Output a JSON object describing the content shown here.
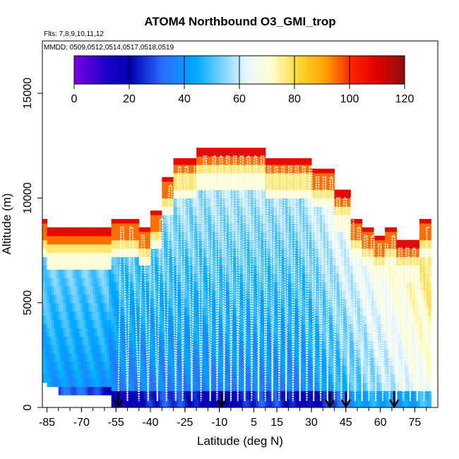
{
  "chart_data": {
    "type": "heatmap",
    "title": "ATOM4 Northbound O3_GMI_trop",
    "flights_label": "Flts: 7,8,9,10,11,12",
    "dates_label": "MMDD: 0509,0512,0514,0517,0518,0519",
    "xlabel": "Latitude (deg N)",
    "ylabel": "Altitude (m)",
    "xlim": [
      -87,
      85
    ],
    "ylim": [
      0,
      17500
    ],
    "x_ticks": [
      -85,
      -70,
      -55,
      -40,
      -25,
      -10,
      5,
      15,
      30,
      45,
      60,
      75
    ],
    "y_ticks": [
      0,
      5000,
      10000,
      15000
    ],
    "colorbar": {
      "range": [
        0,
        120
      ],
      "ticks": [
        0,
        20,
        40,
        60,
        80,
        100,
        120
      ],
      "colors": [
        "#7a00e6",
        "#0000b3",
        "#2b7fff",
        "#00aaff",
        "#bfe8ff",
        "#ffffcc",
        "#ffd633",
        "#ff9900",
        "#ff0000",
        "#b30000"
      ]
    },
    "curtain_columns": [
      {
        "lat0": -87,
        "lat1": -85,
        "top": 9000,
        "bottom": 1200
      },
      {
        "lat0": -85,
        "lat1": -80,
        "top": 8600,
        "bottom": 1000
      },
      {
        "lat0": -80,
        "lat1": -57,
        "top": 8600,
        "bottom": 600
      },
      {
        "lat0": -57,
        "lat1": -52,
        "top": 9000,
        "bottom": 0
      },
      {
        "lat0": -52,
        "lat1": -45,
        "top": 9000,
        "bottom": 0
      },
      {
        "lat0": -45,
        "lat1": -40,
        "top": 8600,
        "bottom": 0
      },
      {
        "lat0": -40,
        "lat1": -35,
        "top": 9400,
        "bottom": 0
      },
      {
        "lat0": -35,
        "lat1": -30,
        "top": 11000,
        "bottom": 0
      },
      {
        "lat0": -30,
        "lat1": -20,
        "top": 11900,
        "bottom": 0
      },
      {
        "lat0": -20,
        "lat1": -10,
        "top": 12400,
        "bottom": 0
      },
      {
        "lat0": -10,
        "lat1": 0,
        "top": 12400,
        "bottom": 0
      },
      {
        "lat0": 0,
        "lat1": 10,
        "top": 12400,
        "bottom": 0
      },
      {
        "lat0": 10,
        "lat1": 20,
        "top": 11900,
        "bottom": 0
      },
      {
        "lat0": 20,
        "lat1": 30,
        "top": 11900,
        "bottom": 0
      },
      {
        "lat0": 30,
        "lat1": 40,
        "top": 11400,
        "bottom": 0
      },
      {
        "lat0": 40,
        "lat1": 47,
        "top": 10400,
        "bottom": 0
      },
      {
        "lat0": 47,
        "lat1": 52,
        "top": 9000,
        "bottom": 0
      },
      {
        "lat0": 52,
        "lat1": 57,
        "top": 8600,
        "bottom": 0
      },
      {
        "lat0": 57,
        "lat1": 62,
        "top": 8200,
        "bottom": 0
      },
      {
        "lat0": 62,
        "lat1": 67,
        "top": 8600,
        "bottom": 0
      },
      {
        "lat0": 67,
        "lat1": 75,
        "top": 8000,
        "bottom": 0
      },
      {
        "lat0": 75,
        "lat1": 77,
        "top": 8000,
        "bottom": 0
      },
      {
        "lat0": 77,
        "lat1": 82,
        "top": 9000,
        "bottom": 0
      }
    ],
    "profile_latitudes": [
      -54,
      -50,
      -45,
      -41,
      -37,
      -33,
      -29,
      -26,
      -22,
      -18,
      -14,
      -11,
      -8,
      -5,
      -2,
      1,
      4,
      7,
      10,
      13,
      16,
      19,
      22,
      25,
      28,
      31,
      34,
      37,
      40,
      43,
      46,
      49,
      52,
      55,
      58,
      61,
      64,
      67,
      70,
      73,
      76,
      79
    ],
    "arrow_latitudes": [
      -54,
      -9,
      38,
      45,
      66
    ]
  }
}
